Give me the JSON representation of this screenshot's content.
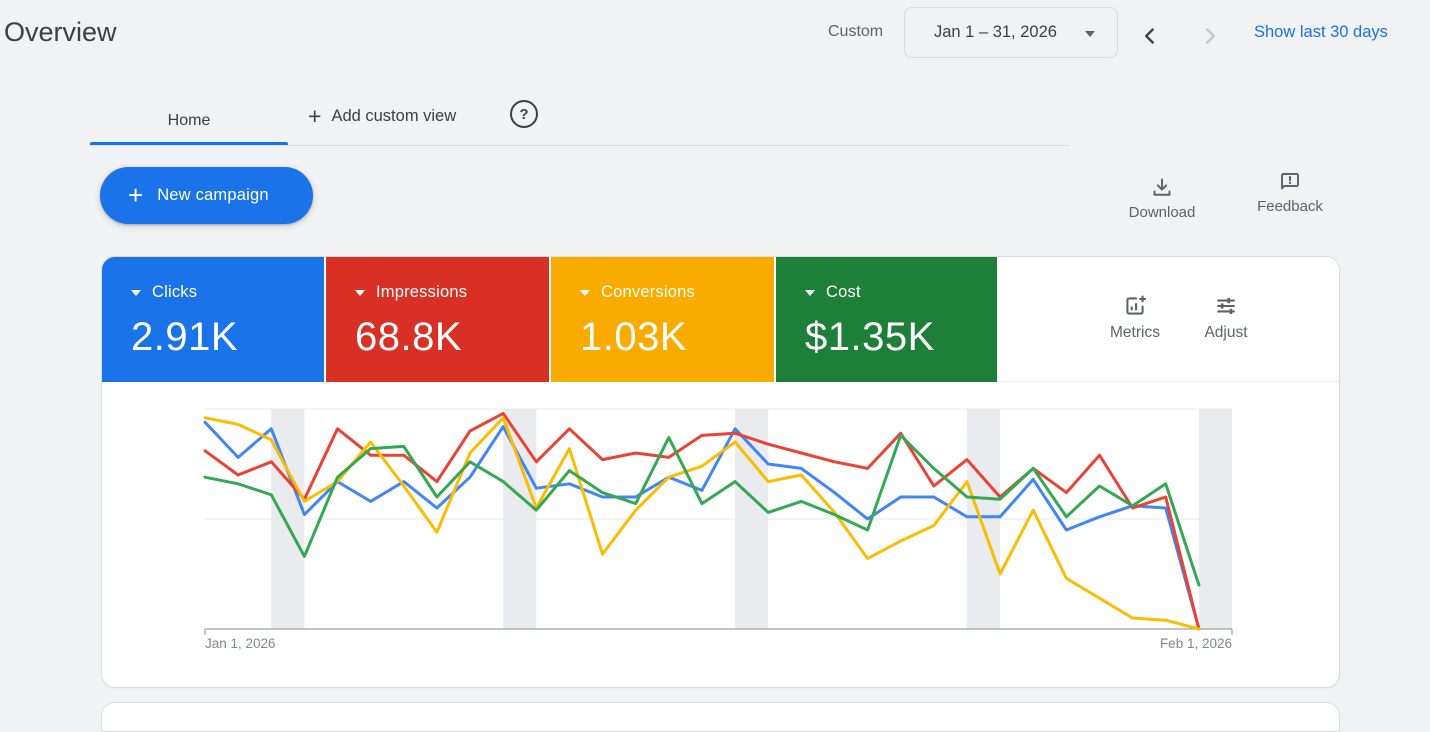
{
  "header": {
    "title": "Overview",
    "range_type_label": "Custom",
    "date_range": "Jan 1 – 31, 2026",
    "show_last_link": "Show last 30 days"
  },
  "tabs": {
    "home": "Home",
    "add_custom_view": "Add custom view",
    "plus_glyph": "+",
    "help_glyph": "?"
  },
  "actions": {
    "new_campaign": "New campaign",
    "download": "Download",
    "feedback": "Feedback"
  },
  "card_tools": {
    "metrics": "Metrics",
    "adjust": "Adjust"
  },
  "metrics": [
    {
      "label": "Clicks",
      "value": "2.91K",
      "color": "#1a73e8",
      "line_color": "#4285f4"
    },
    {
      "label": "Impressions",
      "value": "68.8K",
      "color": "#d93025",
      "line_color": "#ea4335"
    },
    {
      "label": "Conversions",
      "value": "1.03K",
      "color": "#f9ab00",
      "line_color": "#fbbc04"
    },
    {
      "label": "Cost",
      "value": "$1.35K",
      "color": "#1e8038",
      "line_color": "#34a853"
    }
  ],
  "chart_data": {
    "type": "line",
    "x_start_label": "Jan 1, 2026",
    "x_end_label": "Feb 1, 2026",
    "x_intervals": 31,
    "weekend_band_days": [
      2,
      9,
      16,
      23,
      30
    ],
    "ylim": [
      0,
      100
    ],
    "gridlines": [
      50,
      100
    ],
    "band_color": "#e9ebee",
    "grid_color": "#e6e8eb",
    "axis_color": "#9aa0a6",
    "series": [
      {
        "name": "Clicks",
        "color": "#4285f4",
        "values": [
          94,
          78,
          91,
          52,
          67,
          58,
          67,
          55,
          69,
          92,
          64,
          66,
          60,
          60,
          69,
          63,
          91,
          75,
          73,
          62,
          50,
          60,
          60,
          51,
          51,
          68,
          45,
          51,
          56,
          55,
          0
        ]
      },
      {
        "name": "Impressions",
        "color": "#ea4335",
        "values": [
          81,
          70,
          76,
          59,
          91,
          79,
          79,
          67,
          90,
          98,
          76,
          91,
          77,
          80,
          78,
          88,
          89,
          84,
          80,
          76,
          73,
          89,
          65,
          77,
          60,
          73,
          62,
          79,
          55,
          60,
          0
        ]
      },
      {
        "name": "Conversions",
        "color": "#fbbc04",
        "values": [
          96,
          93,
          86,
          58,
          67,
          85,
          65,
          44,
          80,
          96,
          55,
          82,
          34,
          54,
          69,
          74,
          85,
          67,
          70,
          53,
          32,
          40,
          47,
          67,
          25,
          54,
          23,
          14,
          5,
          4,
          0
        ]
      },
      {
        "name": "Cost",
        "color": "#34a853",
        "values": [
          69,
          66,
          61,
          33,
          69,
          82,
          83,
          60,
          76,
          67,
          54,
          72,
          62,
          57,
          87,
          57,
          67,
          53,
          58,
          52,
          45,
          88,
          73,
          60,
          59,
          73,
          51,
          65,
          56,
          66,
          20
        ]
      }
    ]
  }
}
